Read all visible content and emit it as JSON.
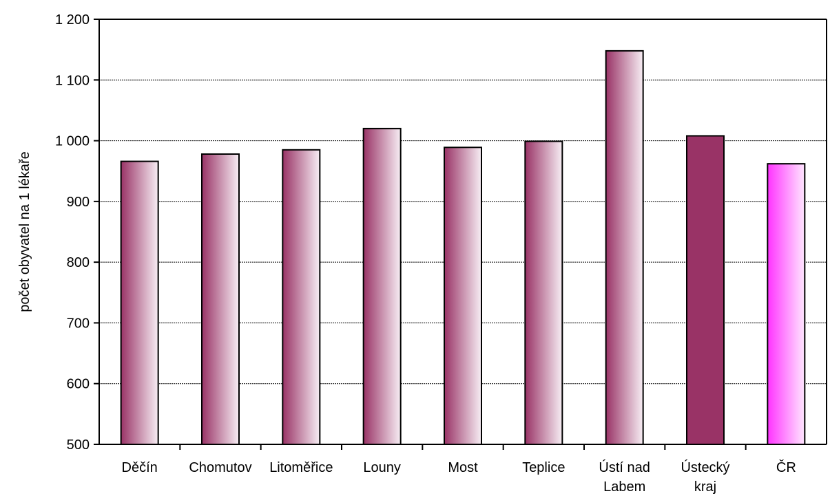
{
  "chart_data": {
    "type": "bar",
    "title": "",
    "xlabel": "",
    "ylabel": "počet obyvatel na 1 lékaře",
    "ylim": [
      500,
      1200
    ],
    "yticks": [
      "500",
      "600",
      "700",
      "800",
      "900",
      "1 000",
      "1 100",
      "1 200"
    ],
    "grid": "horizontal",
    "categories": [
      [
        "Děčín"
      ],
      [
        "Chomutov"
      ],
      [
        "Litoměřice"
      ],
      [
        "Louny"
      ],
      [
        "Most"
      ],
      [
        "Teplice"
      ],
      [
        "Ústí nad",
        "Labem"
      ],
      [
        "Ústecký",
        "kraj"
      ],
      [
        "ČR"
      ]
    ],
    "values": [
      966,
      978,
      985,
      1020,
      989,
      999,
      1148,
      1008,
      962
    ],
    "bar_styles": [
      "gradient",
      "gradient",
      "gradient",
      "gradient",
      "gradient",
      "gradient",
      "gradient",
      "solid",
      "magenta-gradient"
    ],
    "colors": {
      "bar_dark": "#993366",
      "bar_light": "#f7eef4",
      "solid": "#993366",
      "cr_start": "#ff33ff",
      "cr_end": "#ffe6ff",
      "grid": "#000000",
      "axis": "#000000"
    }
  }
}
